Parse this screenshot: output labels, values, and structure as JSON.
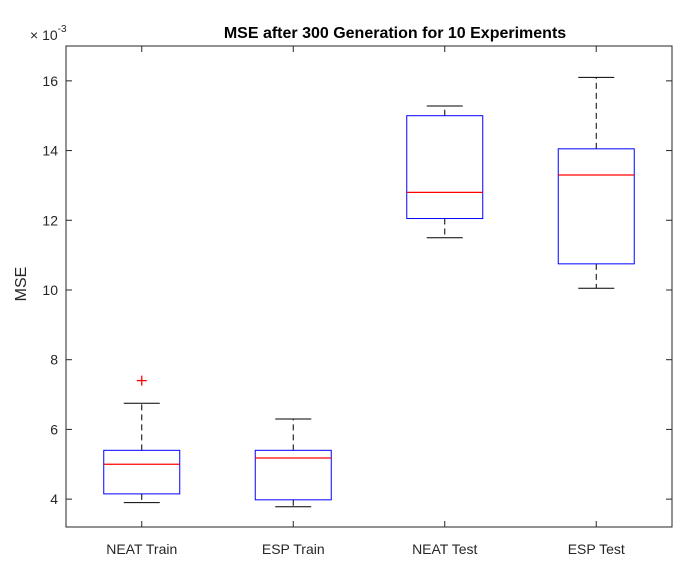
{
  "chart_data": {
    "type": "box",
    "title": "MSE after 300 Generation for 10 Experiments",
    "xlabel": "",
    "ylabel": "MSE",
    "y_exponent_base": "× 10",
    "y_exponent_power": "-3",
    "ylim": [
      3.2,
      17.0
    ],
    "yticks": [
      4,
      6,
      8,
      10,
      12,
      14,
      16
    ],
    "ytick_labels": [
      "4",
      "6",
      "8",
      "10",
      "12",
      "14",
      "16"
    ],
    "categories": [
      "NEAT Train",
      "ESP Train",
      "NEAT Test",
      "ESP Test"
    ],
    "boxes": [
      {
        "lower_whisker": 3.9,
        "q1": 4.15,
        "median": 5.0,
        "q3": 5.4,
        "upper_whisker": 6.75,
        "outliers": [
          7.4
        ]
      },
      {
        "lower_whisker": 3.78,
        "q1": 3.98,
        "median": 5.18,
        "q3": 5.4,
        "upper_whisker": 6.3,
        "outliers": []
      },
      {
        "lower_whisker": 11.5,
        "q1": 12.05,
        "median": 12.8,
        "q3": 15.0,
        "upper_whisker": 15.28,
        "outliers": []
      },
      {
        "lower_whisker": 10.05,
        "q1": 10.75,
        "median": 13.3,
        "q3": 14.05,
        "upper_whisker": 16.1,
        "outliers": []
      }
    ],
    "grid": false,
    "colors": {
      "box": "#0000ff",
      "median": "#ff0000",
      "whisker": "#000000",
      "outlier": "#ff0000",
      "axis": "#262626"
    }
  }
}
